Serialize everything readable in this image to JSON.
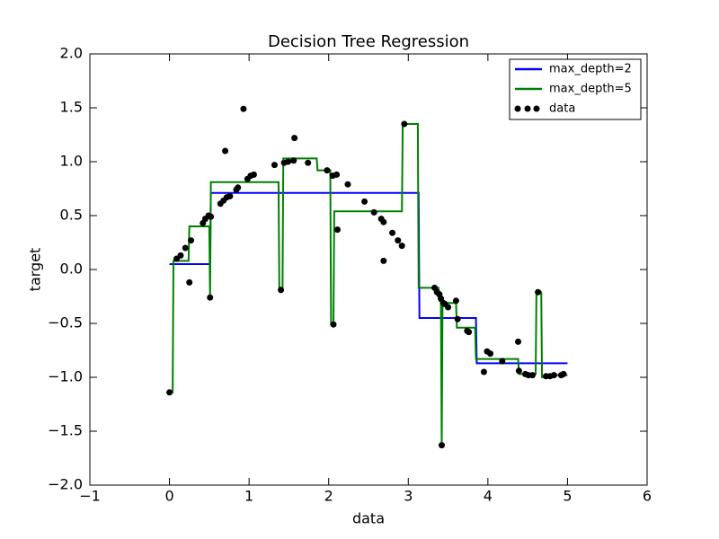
{
  "chart_data": {
    "type": "line",
    "title": "Decision Tree Regression",
    "x_label": "data",
    "y_label": "target",
    "xlim": [
      -1,
      6
    ],
    "ylim": [
      -2,
      2
    ],
    "xticks": [
      {
        "value": -1,
        "label": "−1"
      },
      0,
      1,
      2,
      3,
      4,
      5,
      6
    ],
    "yticks": [
      {
        "value": -2,
        "label": "−2.0"
      },
      {
        "value": -1.5,
        "label": "−1.5"
      },
      {
        "value": -1,
        "label": "−1.0"
      },
      {
        "value": -0.5,
        "label": "−0.5"
      },
      {
        "value": 0,
        "label": "0.0"
      },
      0.5,
      {
        "value": 1,
        "label": "1.0"
      },
      1.5,
      {
        "value": 2,
        "label": "2.0"
      }
    ],
    "grid": false,
    "legend": "upper right",
    "series": [
      {
        "name": "max_depth=2",
        "color": "#0000ff",
        "style": "line",
        "x": [
          0,
          0.51,
          0.52,
          3.13,
          3.14,
          3.85,
          3.86,
          5.0
        ],
        "values": [
          0.05,
          0.05,
          0.71,
          0.71,
          -0.45,
          -0.45,
          -0.87,
          -0.87
        ]
      },
      {
        "name": "max_depth=5",
        "color": "#008000",
        "style": "line",
        "x": [
          0,
          0.04,
          0.05,
          0.24,
          0.25,
          0.5,
          0.51,
          0.52,
          1.37,
          1.38,
          1.42,
          1.43,
          1.85,
          1.86,
          2.02,
          2.03,
          2.06,
          2.07,
          2.92,
          2.93,
          3.12,
          3.13,
          3.38,
          3.39,
          3.41,
          3.42,
          3.43,
          3.6,
          3.61,
          3.84,
          3.85,
          4.38,
          4.39,
          4.6,
          4.61,
          4.67,
          4.68,
          4.81,
          4.82,
          5.0
        ],
        "values": [
          -1.14,
          -1.14,
          0.08,
          0.08,
          0.4,
          0.4,
          -0.26,
          0.81,
          0.81,
          -0.19,
          -0.19,
          1.03,
          1.03,
          0.92,
          0.92,
          -0.51,
          -0.51,
          0.54,
          0.54,
          1.35,
          1.35,
          -0.17,
          -0.17,
          -0.29,
          -0.29,
          -1.63,
          -0.31,
          -0.31,
          -0.54,
          -0.54,
          -0.83,
          -0.83,
          -0.97,
          -0.97,
          -0.21,
          -0.21,
          -1.0,
          -1.0,
          -0.98,
          -0.98
        ]
      },
      {
        "name": "data",
        "color": "#000000",
        "style": "scatter",
        "x": [
          0.0,
          0.09,
          0.14,
          0.2,
          0.25,
          0.27,
          0.42,
          0.45,
          0.49,
          0.51,
          0.52,
          0.64,
          0.68,
          0.7,
          0.72,
          0.76,
          0.84,
          0.86,
          0.93,
          0.98,
          1.02,
          1.06,
          1.32,
          1.4,
          1.44,
          1.49,
          1.56,
          1.57,
          1.74,
          1.98,
          2.05,
          2.06,
          2.1,
          2.11,
          2.24,
          2.45,
          2.57,
          2.66,
          2.69,
          2.69,
          2.8,
          2.87,
          2.92,
          2.95,
          3.33,
          3.36,
          3.39,
          3.41,
          3.42,
          3.44,
          3.46,
          3.5,
          3.6,
          3.62,
          3.74,
          3.76,
          3.95,
          3.99,
          4.03,
          4.18,
          4.38,
          4.39,
          4.47,
          4.51,
          4.56,
          4.63,
          4.73,
          4.78,
          4.83,
          4.92,
          4.95
        ],
        "values": [
          -1.14,
          0.1,
          0.13,
          0.2,
          -0.12,
          0.27,
          0.43,
          0.47,
          0.5,
          -0.26,
          0.49,
          0.61,
          0.64,
          1.1,
          0.67,
          0.68,
          0.74,
          0.76,
          1.49,
          0.84,
          0.87,
          0.88,
          0.97,
          -0.19,
          0.99,
          1.0,
          1.01,
          1.22,
          0.99,
          0.92,
          0.87,
          -0.51,
          0.88,
          0.37,
          0.79,
          0.63,
          0.53,
          0.47,
          0.44,
          0.08,
          0.34,
          0.27,
          0.22,
          1.35,
          -0.17,
          -0.21,
          -0.23,
          -0.27,
          -1.63,
          -0.31,
          -0.32,
          -0.35,
          -0.29,
          -0.46,
          -0.57,
          -0.58,
          -0.95,
          -0.76,
          -0.78,
          -0.85,
          -0.67,
          -0.94,
          -0.97,
          -0.98,
          -0.98,
          -0.21,
          -0.99,
          -0.99,
          -0.98,
          -0.98,
          -0.97
        ]
      }
    ]
  }
}
